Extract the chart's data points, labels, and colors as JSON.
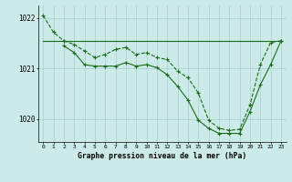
{
  "title": "Graphe pression niveau de la mer (hPa)",
  "bg_color": "#cceae8",
  "grid_color": "#aad4d0",
  "line_color": "#1a6b1a",
  "xlim": [
    -0.5,
    23.5
  ],
  "ylim": [
    1019.55,
    1022.25
  ],
  "yticks": [
    1020,
    1021,
    1022
  ],
  "xtick_labels": [
    "0",
    "1",
    "2",
    "3",
    "4",
    "5",
    "6",
    "7",
    "8",
    "9",
    "10",
    "11",
    "12",
    "13",
    "14",
    "15",
    "16",
    "17",
    "18",
    "19",
    "20",
    "21",
    "22",
    "23"
  ],
  "series": [
    {
      "x": [
        0,
        1,
        2
      ],
      "y": [
        1022.05,
        1021.72,
        1021.55
      ],
      "style": "--",
      "marker": "+"
    },
    {
      "x": [
        0,
        23
      ],
      "y": [
        1021.55,
        1021.55
      ],
      "style": "-",
      "marker": null
    },
    {
      "x": [
        2,
        3,
        4,
        5,
        6,
        7,
        8,
        9,
        10,
        11,
        12,
        13,
        14,
        15,
        16,
        17,
        18,
        19,
        20,
        21,
        22,
        23
      ],
      "y": [
        1021.55,
        1021.48,
        1021.35,
        1021.22,
        1021.28,
        1021.38,
        1021.42,
        1021.28,
        1021.32,
        1021.22,
        1021.18,
        1020.95,
        1020.82,
        1020.52,
        1019.98,
        1019.82,
        1019.78,
        1019.8,
        1020.28,
        1021.08,
        1021.52,
        1021.55
      ],
      "style": "--",
      "marker": "+"
    },
    {
      "x": [
        2,
        3,
        4,
        5,
        6,
        7,
        8,
        9,
        10,
        11,
        12,
        13,
        14,
        15,
        16,
        17,
        18,
        19,
        20,
        21,
        22,
        23
      ],
      "y": [
        1021.45,
        1021.32,
        1021.08,
        1021.05,
        1021.05,
        1021.05,
        1021.12,
        1021.05,
        1021.08,
        1021.02,
        1020.88,
        1020.65,
        1020.38,
        1019.98,
        1019.82,
        1019.72,
        1019.72,
        1019.72,
        1020.15,
        1020.68,
        1021.08,
        1021.55
      ],
      "style": "-",
      "marker": "+"
    }
  ]
}
